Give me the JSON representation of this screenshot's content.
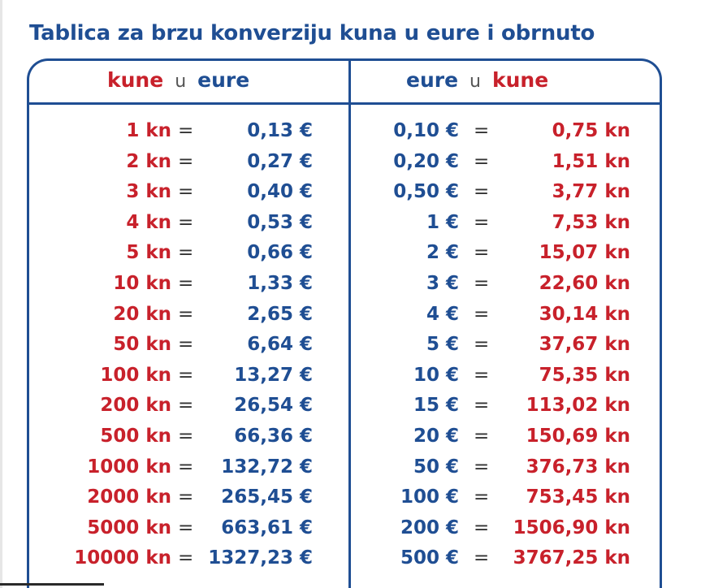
{
  "title": "Tablica za brzu konverziju kuna u eure i obrnuto",
  "header": {
    "left": {
      "from": "kune",
      "sep": "u",
      "to": "eure"
    },
    "right": {
      "from": "eure",
      "sep": "u",
      "to": "kune"
    }
  },
  "equals": "=",
  "colors": {
    "blue": "#1f4e93",
    "red": "#c8212b"
  },
  "rows": [
    {
      "kn": "1 kn",
      "eur": "0,13 €",
      "eur_r": "0,10 €",
      "kn_r": "0,75 kn"
    },
    {
      "kn": "2 kn",
      "eur": "0,27 €",
      "eur_r": "0,20 €",
      "kn_r": "1,51 kn"
    },
    {
      "kn": "3 kn",
      "eur": "0,40 €",
      "eur_r": "0,50 €",
      "kn_r": "3,77 kn"
    },
    {
      "kn": "4 kn",
      "eur": "0,53 €",
      "eur_r": "1 €",
      "kn_r": "7,53 kn"
    },
    {
      "kn": "5 kn",
      "eur": "0,66 €",
      "eur_r": "2 €",
      "kn_r": "15,07 kn"
    },
    {
      "kn": "10 kn",
      "eur": "1,33 €",
      "eur_r": "3 €",
      "kn_r": "22,60 kn"
    },
    {
      "kn": "20 kn",
      "eur": "2,65 €",
      "eur_r": "4 €",
      "kn_r": "30,14 kn"
    },
    {
      "kn": "50 kn",
      "eur": "6,64 €",
      "eur_r": "5 €",
      "kn_r": "37,67 kn"
    },
    {
      "kn": "100 kn",
      "eur": "13,27 €",
      "eur_r": "10 €",
      "kn_r": "75,35 kn"
    },
    {
      "kn": "200 kn",
      "eur": "26,54 €",
      "eur_r": "15 €",
      "kn_r": "113,02 kn"
    },
    {
      "kn": "500 kn",
      "eur": "66,36 €",
      "eur_r": "20 €",
      "kn_r": "150,69 kn"
    },
    {
      "kn": "1000 kn",
      "eur": "132,72 €",
      "eur_r": "50 €",
      "kn_r": "376,73 kn"
    },
    {
      "kn": "2000 kn",
      "eur": "265,45 €",
      "eur_r": "100 €",
      "kn_r": "753,45 kn"
    },
    {
      "kn": "5000 kn",
      "eur": "663,61 €",
      "eur_r": "200 €",
      "kn_r": "1506,90 kn"
    },
    {
      "kn": "10000 kn",
      "eur": "1327,23 €",
      "eur_r": "500 €",
      "kn_r": "3767,25 kn"
    }
  ]
}
